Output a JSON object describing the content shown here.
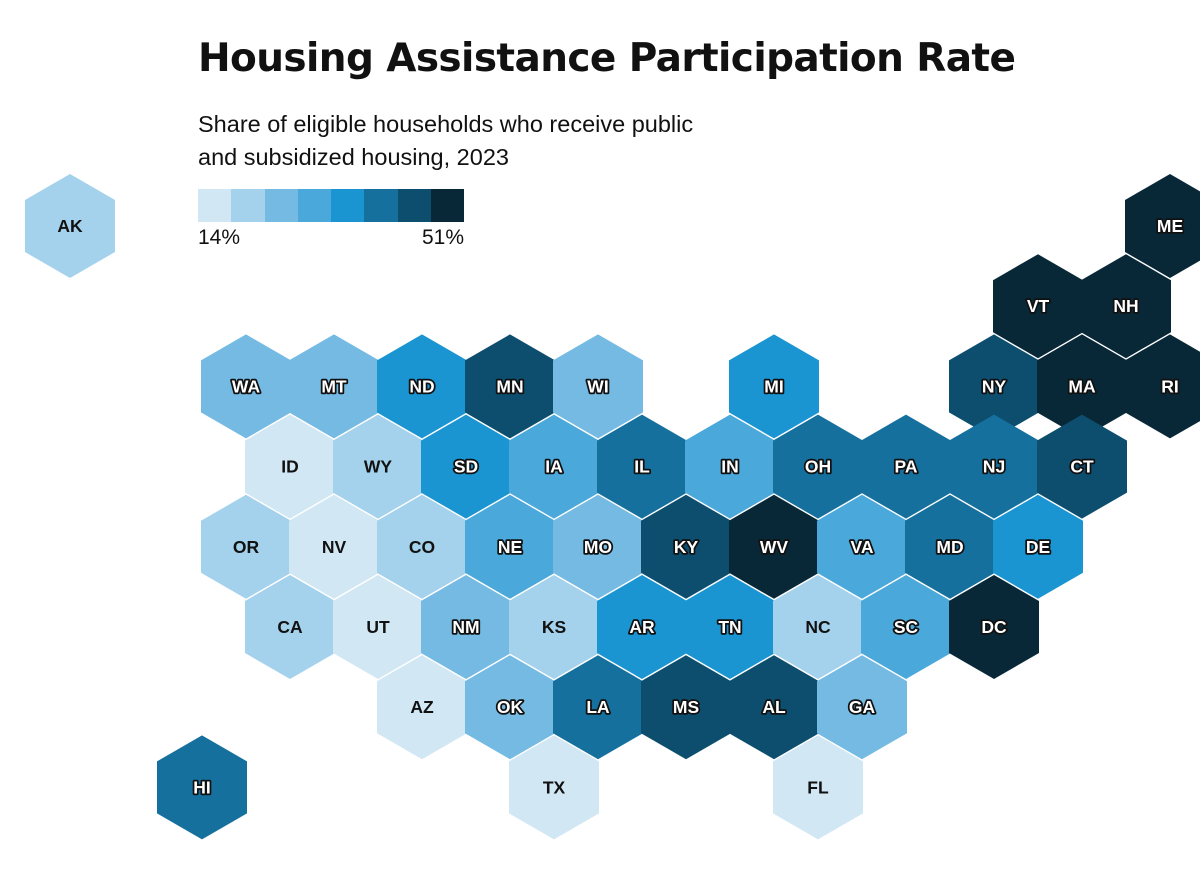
{
  "title": "Housing Assistance Participation Rate",
  "subtitle": "Share of eligible households who receive public and subsidized housing, 2023",
  "legend": {
    "min_label": "14%",
    "max_label": "51%",
    "colors": [
      "#d2e7f4",
      "#a4d1ec",
      "#74bae3",
      "#4aa8db",
      "#1a95d2",
      "#15709e",
      "#0d4e6f",
      "#082838"
    ]
  },
  "chart_data": {
    "type": "hex-tile choropleth",
    "title": "Housing Assistance Participation Rate",
    "subtitle": "Share of eligible households who receive public and subsidized housing, 2023",
    "color_scale": {
      "min": "14%",
      "max": "51%",
      "bins": 8
    },
    "states": [
      {
        "abbr": "AK",
        "bin": 1,
        "row": 0,
        "col": 0,
        "detached": true
      },
      {
        "abbr": "ME",
        "bin": 7,
        "row": 0,
        "col": 12.5
      },
      {
        "abbr": "VT",
        "bin": 7,
        "row": 1,
        "col": 11
      },
      {
        "abbr": "NH",
        "bin": 7,
        "row": 1,
        "col": 12
      },
      {
        "abbr": "WA",
        "bin": 2,
        "row": 2,
        "col": 2
      },
      {
        "abbr": "MT",
        "bin": 2,
        "row": 2,
        "col": 3
      },
      {
        "abbr": "ND",
        "bin": 4,
        "row": 2,
        "col": 4
      },
      {
        "abbr": "MN",
        "bin": 6,
        "row": 2,
        "col": 5
      },
      {
        "abbr": "WI",
        "bin": 2,
        "row": 2,
        "col": 6
      },
      {
        "abbr": "MI",
        "bin": 4,
        "row": 2,
        "col": 8
      },
      {
        "abbr": "NY",
        "bin": 6,
        "row": 2,
        "col": 10.5
      },
      {
        "abbr": "MA",
        "bin": 7,
        "row": 2,
        "col": 11.5
      },
      {
        "abbr": "RI",
        "bin": 7,
        "row": 2,
        "col": 12.5
      },
      {
        "abbr": "ID",
        "bin": 0,
        "row": 3,
        "col": 2.5
      },
      {
        "abbr": "WY",
        "bin": 1,
        "row": 3,
        "col": 3.5
      },
      {
        "abbr": "SD",
        "bin": 4,
        "row": 3,
        "col": 4.5
      },
      {
        "abbr": "IA",
        "bin": 3,
        "row": 3,
        "col": 5.5
      },
      {
        "abbr": "IL",
        "bin": 5,
        "row": 3,
        "col": 6.5
      },
      {
        "abbr": "IN",
        "bin": 3,
        "row": 3,
        "col": 7.5
      },
      {
        "abbr": "OH",
        "bin": 5,
        "row": 3,
        "col": 8.5
      },
      {
        "abbr": "PA",
        "bin": 5,
        "row": 3,
        "col": 9.5
      },
      {
        "abbr": "NJ",
        "bin": 5,
        "row": 3,
        "col": 10.5
      },
      {
        "abbr": "CT",
        "bin": 6,
        "row": 3,
        "col": 11.5
      },
      {
        "abbr": "OR",
        "bin": 1,
        "row": 4,
        "col": 2
      },
      {
        "abbr": "NV",
        "bin": 0,
        "row": 4,
        "col": 3
      },
      {
        "abbr": "CO",
        "bin": 1,
        "row": 4,
        "col": 4
      },
      {
        "abbr": "NE",
        "bin": 3,
        "row": 4,
        "col": 5
      },
      {
        "abbr": "MO",
        "bin": 2,
        "row": 4,
        "col": 6
      },
      {
        "abbr": "KY",
        "bin": 6,
        "row": 4,
        "col": 7
      },
      {
        "abbr": "WV",
        "bin": 7,
        "row": 4,
        "col": 8
      },
      {
        "abbr": "VA",
        "bin": 3,
        "row": 4,
        "col": 9
      },
      {
        "abbr": "MD",
        "bin": 5,
        "row": 4,
        "col": 10
      },
      {
        "abbr": "DE",
        "bin": 4,
        "row": 4,
        "col": 11
      },
      {
        "abbr": "CA",
        "bin": 1,
        "row": 5,
        "col": 2.5
      },
      {
        "abbr": "UT",
        "bin": 0,
        "row": 5,
        "col": 3.5
      },
      {
        "abbr": "NM",
        "bin": 2,
        "row": 5,
        "col": 4.5
      },
      {
        "abbr": "KS",
        "bin": 1,
        "row": 5,
        "col": 5.5
      },
      {
        "abbr": "AR",
        "bin": 4,
        "row": 5,
        "col": 6.5
      },
      {
        "abbr": "TN",
        "bin": 4,
        "row": 5,
        "col": 7.5
      },
      {
        "abbr": "NC",
        "bin": 1,
        "row": 5,
        "col": 8.5
      },
      {
        "abbr": "SC",
        "bin": 3,
        "row": 5,
        "col": 9.5
      },
      {
        "abbr": "DC",
        "bin": 7,
        "row": 5,
        "col": 10.5
      },
      {
        "abbr": "AZ",
        "bin": 0,
        "row": 6,
        "col": 4
      },
      {
        "abbr": "OK",
        "bin": 2,
        "row": 6,
        "col": 5
      },
      {
        "abbr": "LA",
        "bin": 5,
        "row": 6,
        "col": 6
      },
      {
        "abbr": "MS",
        "bin": 6,
        "row": 6,
        "col": 7
      },
      {
        "abbr": "AL",
        "bin": 6,
        "row": 6,
        "col": 8
      },
      {
        "abbr": "GA",
        "bin": 2,
        "row": 6,
        "col": 9
      },
      {
        "abbr": "HI",
        "bin": 5,
        "row": 7,
        "col": 1.5,
        "detached": true
      },
      {
        "abbr": "TX",
        "bin": 0,
        "row": 7,
        "col": 5.5
      },
      {
        "abbr": "FL",
        "bin": 0,
        "row": 7,
        "col": 8.5
      }
    ]
  }
}
